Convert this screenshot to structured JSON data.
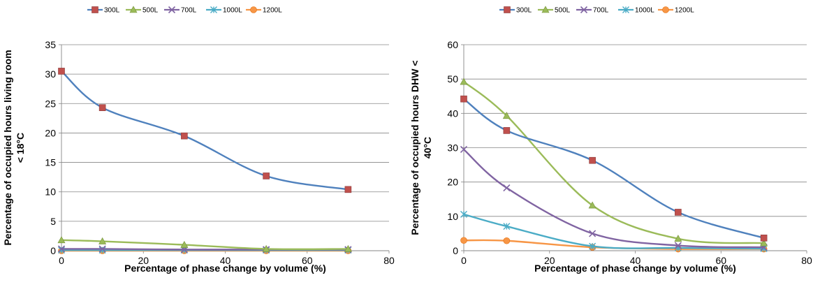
{
  "chart_data": [
    {
      "type": "line",
      "title": "",
      "xlabel": "Percentage of phase change by volume (%)",
      "ylabel_lines": [
        "Percentage  of occupied hours living room",
        "< 18°C"
      ],
      "xlim": [
        0,
        80
      ],
      "ylim": [
        0,
        35
      ],
      "xticks": [
        0,
        20,
        40,
        60,
        80
      ],
      "yticks": [
        0,
        5,
        10,
        15,
        20,
        25,
        30,
        35
      ],
      "grid": "horizontal",
      "legend_position": "top",
      "x": [
        0,
        10,
        30,
        50,
        70
      ],
      "series": [
        {
          "name": "300L",
          "color": "#4F81BD",
          "marker": "square",
          "marker_color": "#C0504D",
          "values": [
            30.5,
            24.3,
            19.5,
            12.7,
            10.4
          ]
        },
        {
          "name": "500L",
          "color": "#9BBB59",
          "marker": "triangle",
          "marker_color": "#9BBB59",
          "values": [
            1.8,
            1.6,
            1.0,
            0.3,
            0.3
          ]
        },
        {
          "name": "700L",
          "color": "#8064A2",
          "marker": "x",
          "marker_color": "#8064A2",
          "values": [
            0.3,
            0.3,
            0.2,
            0.2,
            0.2
          ]
        },
        {
          "name": "1000L",
          "color": "#4BACC6",
          "marker": "star",
          "marker_color": "#4BACC6",
          "values": [
            0.1,
            0.1,
            0.1,
            0.1,
            0.1
          ]
        },
        {
          "name": "1200L",
          "color": "#F79646",
          "marker": "circle",
          "marker_color": "#F79646",
          "values": [
            0.0,
            0.0,
            0.0,
            0.0,
            0.0
          ]
        }
      ]
    },
    {
      "type": "line",
      "title": "",
      "xlabel": "Percentage of phase change by volume (%)",
      "ylabel_lines": [
        "Percentage  of occupied hours DHW <",
        "40°C"
      ],
      "xlim": [
        0,
        80
      ],
      "ylim": [
        0,
        60
      ],
      "xticks": [
        0,
        20,
        40,
        60,
        80
      ],
      "yticks": [
        0,
        10,
        20,
        30,
        40,
        50,
        60
      ],
      "grid": "horizontal",
      "legend_position": "top",
      "x": [
        0,
        10,
        30,
        50,
        70
      ],
      "series": [
        {
          "name": "300L",
          "color": "#4F81BD",
          "marker": "square",
          "marker_color": "#C0504D",
          "values": [
            44.2,
            35.0,
            26.3,
            11.2,
            3.7
          ]
        },
        {
          "name": "500L",
          "color": "#9BBB59",
          "marker": "triangle",
          "marker_color": "#9BBB59",
          "values": [
            49.2,
            39.3,
            13.2,
            3.5,
            2.2
          ]
        },
        {
          "name": "700L",
          "color": "#8064A2",
          "marker": "x",
          "marker_color": "#8064A2",
          "values": [
            29.5,
            18.3,
            5.0,
            1.5,
            1.0
          ]
        },
        {
          "name": "1000L",
          "color": "#4BACC6",
          "marker": "star",
          "marker_color": "#4BACC6",
          "values": [
            10.6,
            7.1,
            1.3,
            0.8,
            0.6
          ]
        },
        {
          "name": "1200L",
          "color": "#F79646",
          "marker": "circle",
          "marker_color": "#F79646",
          "values": [
            3.0,
            2.9,
            1.0,
            0.5,
            0.5
          ]
        }
      ]
    }
  ]
}
